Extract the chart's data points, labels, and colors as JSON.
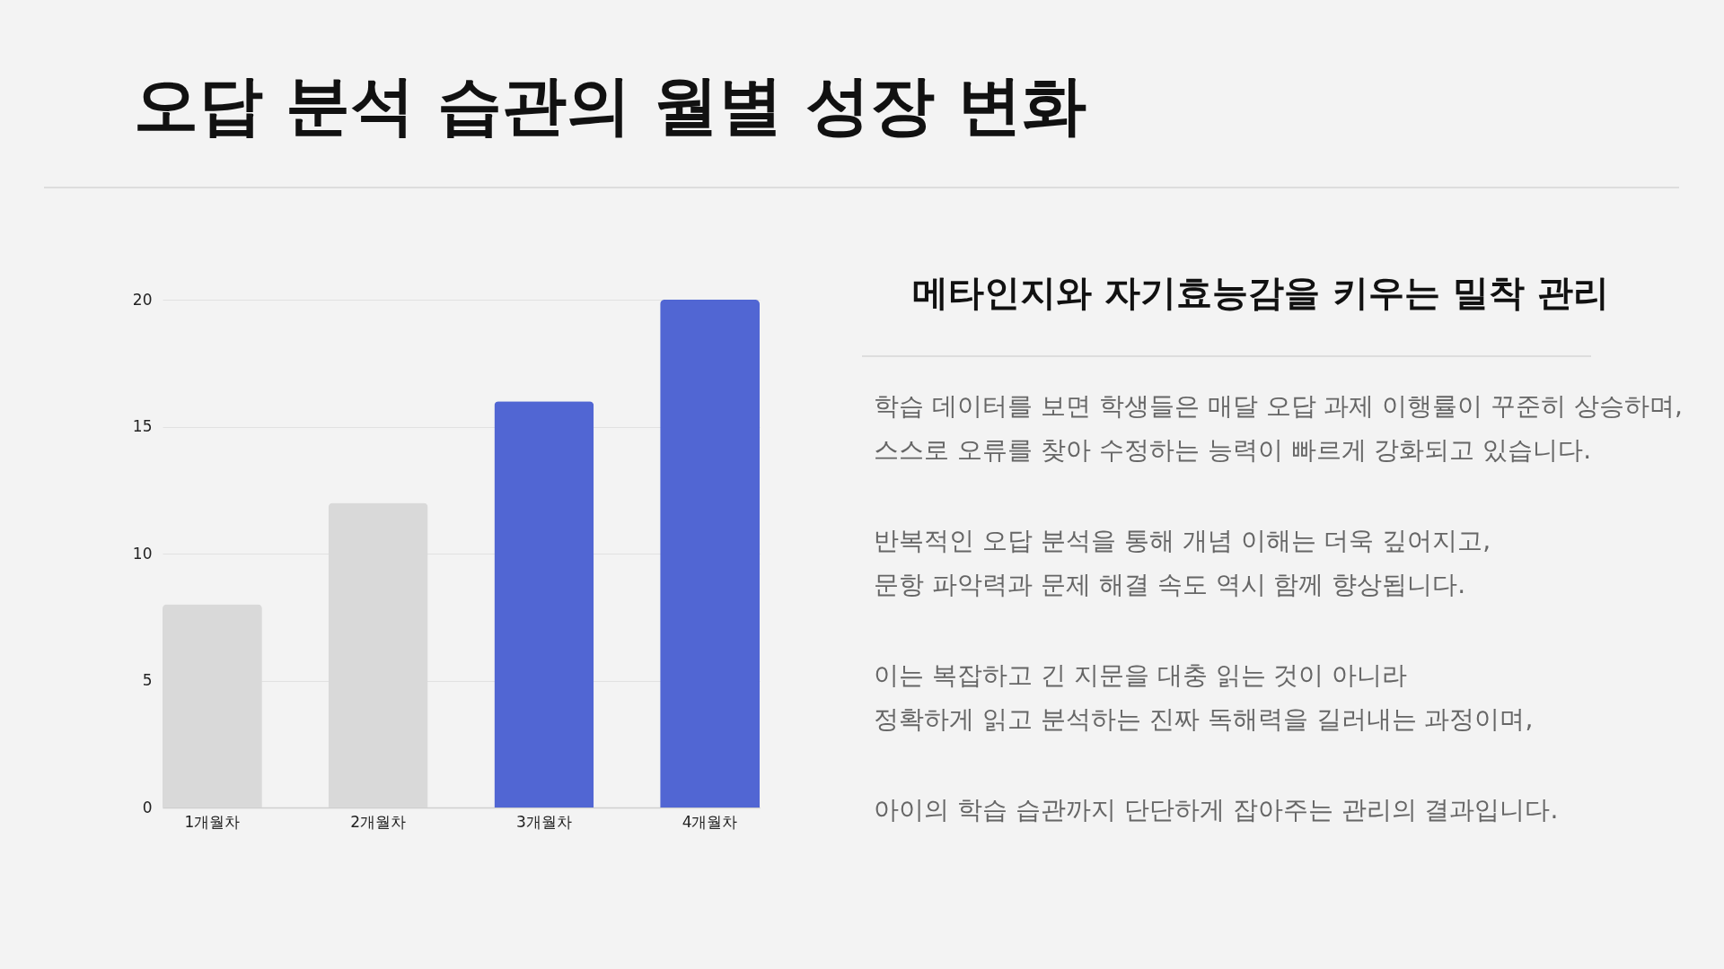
{
  "chart_data": [
    {
      "type": "bar",
      "title": "오답 분석 습관의 월별 성장 변화",
      "categories": [
        "1개월차",
        "2개월차",
        "3개월차",
        "4개월차"
      ],
      "values": [
        8,
        12,
        16,
        20
      ],
      "colors": [
        "#d9d9d9",
        "#d9d9d9",
        "#5166d3",
        "#5166d3"
      ],
      "ylim": [
        0,
        20
      ],
      "yticks": [
        0,
        5,
        10,
        15,
        20
      ],
      "grid": "y"
    },
    {
      "type": "other",
      "title": "메타인지와 자기효능감을 키우는 밀착 관리",
      "annotations": [
        "학습 데이터를 보면 학생들은 매달 오답 과제 이행률이 꾸준히 상승하며,\n스스로 오류를 찾아 수정하는 능력이 빠르게 강화되고 있습니다.",
        "반복적인 오답 분석을 통해 개념 이해는 더욱 깊어지고,\n문항 파악력과 문제 해결 속도 역시 함께 향상됩니다.",
        "이는 복잡하고 긴 지문을 대충 읽는 것이 아니라\n정확하게 읽고 분석하는 진짜 독해력을 길러내는 과정이며,",
        "아이의 학습 습관까지 단단하게 잡아주는 관리의 결과입니다."
      ]
    }
  ]
}
